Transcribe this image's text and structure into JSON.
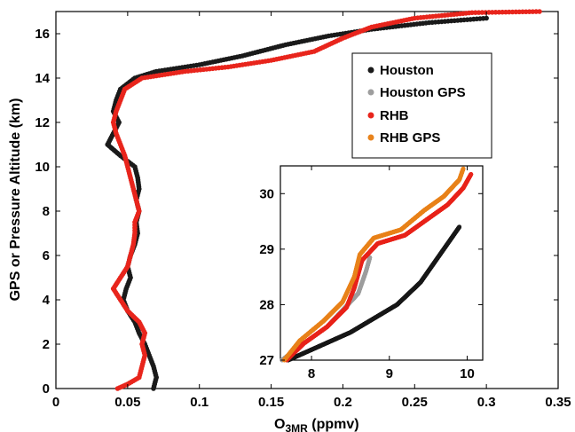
{
  "chart_data": [
    {
      "type": "scatter",
      "title": "",
      "xlabel_main": "O",
      "xlabel_sub": "3MR",
      "xlabel_unit": " (ppmv)",
      "ylabel": "GPS or Pressure Altitude (km)",
      "xlim": [
        0,
        0.35
      ],
      "ylim": [
        0,
        17
      ],
      "xticks": [
        0,
        0.05,
        0.1,
        0.15,
        0.2,
        0.25,
        0.3,
        0.35
      ],
      "xtick_labels": [
        "0",
        "0.05",
        "0.1",
        "0.15",
        "0.2",
        "0.25",
        "0.3",
        "0.35"
      ],
      "yticks": [
        0,
        2,
        4,
        6,
        8,
        10,
        12,
        14,
        16
      ],
      "ytick_labels": [
        "0",
        "2",
        "4",
        "6",
        "8",
        "10",
        "12",
        "14",
        "16"
      ],
      "grid": false,
      "legend_position": "top-right",
      "series": [
        {
          "name": "Houston",
          "color": "#1a1a1a",
          "points": [
            [
              0.068,
              0.0
            ],
            [
              0.07,
              0.5
            ],
            [
              0.068,
              1.0
            ],
            [
              0.065,
              1.5
            ],
            [
              0.062,
              2.0
            ],
            [
              0.058,
              2.5
            ],
            [
              0.055,
              3.0
            ],
            [
              0.05,
              3.5
            ],
            [
              0.047,
              4.0
            ],
            [
              0.049,
              4.5
            ],
            [
              0.052,
              5.0
            ],
            [
              0.05,
              5.5
            ],
            [
              0.052,
              6.0
            ],
            [
              0.055,
              6.5
            ],
            [
              0.057,
              7.0
            ],
            [
              0.056,
              7.5
            ],
            [
              0.058,
              8.0
            ],
            [
              0.056,
              8.5
            ],
            [
              0.058,
              9.0
            ],
            [
              0.057,
              9.5
            ],
            [
              0.055,
              10.0
            ],
            [
              0.045,
              10.5
            ],
            [
              0.036,
              11.0
            ],
            [
              0.04,
              11.5
            ],
            [
              0.044,
              12.0
            ],
            [
              0.04,
              12.5
            ],
            [
              0.042,
              13.0
            ],
            [
              0.045,
              13.5
            ],
            [
              0.055,
              14.0
            ],
            [
              0.07,
              14.3
            ],
            [
              0.1,
              14.6
            ],
            [
              0.13,
              15.0
            ],
            [
              0.16,
              15.5
            ],
            [
              0.19,
              15.9
            ],
            [
              0.22,
              16.2
            ],
            [
              0.26,
              16.5
            ],
            [
              0.3,
              16.7
            ]
          ]
        },
        {
          "name": "Houston GPS",
          "color": "#9e9e9e",
          "points": []
        },
        {
          "name": "RHB",
          "color": "#e8251c",
          "points": [
            [
              0.043,
              0.0
            ],
            [
              0.05,
              0.2
            ],
            [
              0.058,
              0.5
            ],
            [
              0.06,
              1.0
            ],
            [
              0.062,
              1.5
            ],
            [
              0.06,
              2.0
            ],
            [
              0.062,
              2.5
            ],
            [
              0.058,
              3.0
            ],
            [
              0.05,
              3.5
            ],
            [
              0.045,
              4.0
            ],
            [
              0.04,
              4.5
            ],
            [
              0.045,
              5.0
            ],
            [
              0.05,
              5.5
            ],
            [
              0.052,
              6.0
            ],
            [
              0.054,
              6.5
            ],
            [
              0.055,
              7.0
            ],
            [
              0.055,
              7.5
            ],
            [
              0.058,
              8.0
            ],
            [
              0.056,
              8.5
            ],
            [
              0.054,
              9.0
            ],
            [
              0.052,
              9.5
            ],
            [
              0.05,
              10.0
            ],
            [
              0.048,
              10.5
            ],
            [
              0.045,
              11.0
            ],
            [
              0.042,
              11.5
            ],
            [
              0.04,
              12.0
            ],
            [
              0.042,
              12.5
            ],
            [
              0.045,
              13.0
            ],
            [
              0.048,
              13.5
            ],
            [
              0.06,
              14.0
            ],
            [
              0.09,
              14.3
            ],
            [
              0.12,
              14.5
            ],
            [
              0.15,
              14.8
            ],
            [
              0.18,
              15.2
            ],
            [
              0.2,
              15.8
            ],
            [
              0.22,
              16.3
            ],
            [
              0.25,
              16.7
            ],
            [
              0.29,
              16.95
            ],
            [
              0.337,
              17.0
            ]
          ]
        },
        {
          "name": "RHB GPS",
          "color": "#e8831c",
          "points": []
        }
      ]
    },
    {
      "type": "scatter",
      "title": "",
      "xlabel": "",
      "ylabel": "",
      "xlim": [
        7.6,
        10.2
      ],
      "ylim": [
        27.0,
        30.5
      ],
      "xticks": [
        8,
        9,
        10
      ],
      "xtick_labels": [
        "8",
        "9",
        "10"
      ],
      "yticks": [
        27,
        28,
        29,
        30
      ],
      "ytick_labels": [
        "27",
        "28",
        "29",
        "30"
      ],
      "grid": false,
      "series": [
        {
          "name": "Houston",
          "color": "#1a1a1a",
          "points": [
            [
              7.7,
              27.0
            ],
            [
              8.1,
              27.25
            ],
            [
              8.5,
              27.5
            ],
            [
              8.8,
              27.75
            ],
            [
              9.1,
              28.0
            ],
            [
              9.4,
              28.4
            ],
            [
              9.6,
              28.8
            ],
            [
              9.8,
              29.2
            ],
            [
              9.9,
              29.4
            ]
          ]
        },
        {
          "name": "Houston GPS",
          "color": "#9e9e9e",
          "points": [
            [
              7.62,
              27.0
            ],
            [
              7.9,
              27.3
            ],
            [
              8.2,
              27.6
            ],
            [
              8.4,
              27.9
            ],
            [
              8.6,
              28.2
            ],
            [
              8.7,
              28.6
            ],
            [
              8.75,
              28.85
            ]
          ]
        },
        {
          "name": "RHB",
          "color": "#e8251c",
          "points": [
            [
              7.68,
              27.0
            ],
            [
              7.9,
              27.3
            ],
            [
              8.2,
              27.6
            ],
            [
              8.45,
              27.95
            ],
            [
              8.55,
              28.3
            ],
            [
              8.65,
              28.8
            ],
            [
              8.85,
              29.1
            ],
            [
              9.2,
              29.25
            ],
            [
              9.5,
              29.55
            ],
            [
              9.75,
              29.8
            ],
            [
              9.95,
              30.1
            ],
            [
              10.05,
              30.35
            ]
          ]
        },
        {
          "name": "RHB GPS",
          "color": "#e8831c",
          "points": [
            [
              7.65,
              27.0
            ],
            [
              7.85,
              27.35
            ],
            [
              8.15,
              27.7
            ],
            [
              8.4,
              28.05
            ],
            [
              8.55,
              28.5
            ],
            [
              8.62,
              28.9
            ],
            [
              8.8,
              29.2
            ],
            [
              9.15,
              29.35
            ],
            [
              9.45,
              29.7
            ],
            [
              9.7,
              29.95
            ],
            [
              9.9,
              30.25
            ],
            [
              9.95,
              30.45
            ]
          ]
        }
      ]
    }
  ]
}
